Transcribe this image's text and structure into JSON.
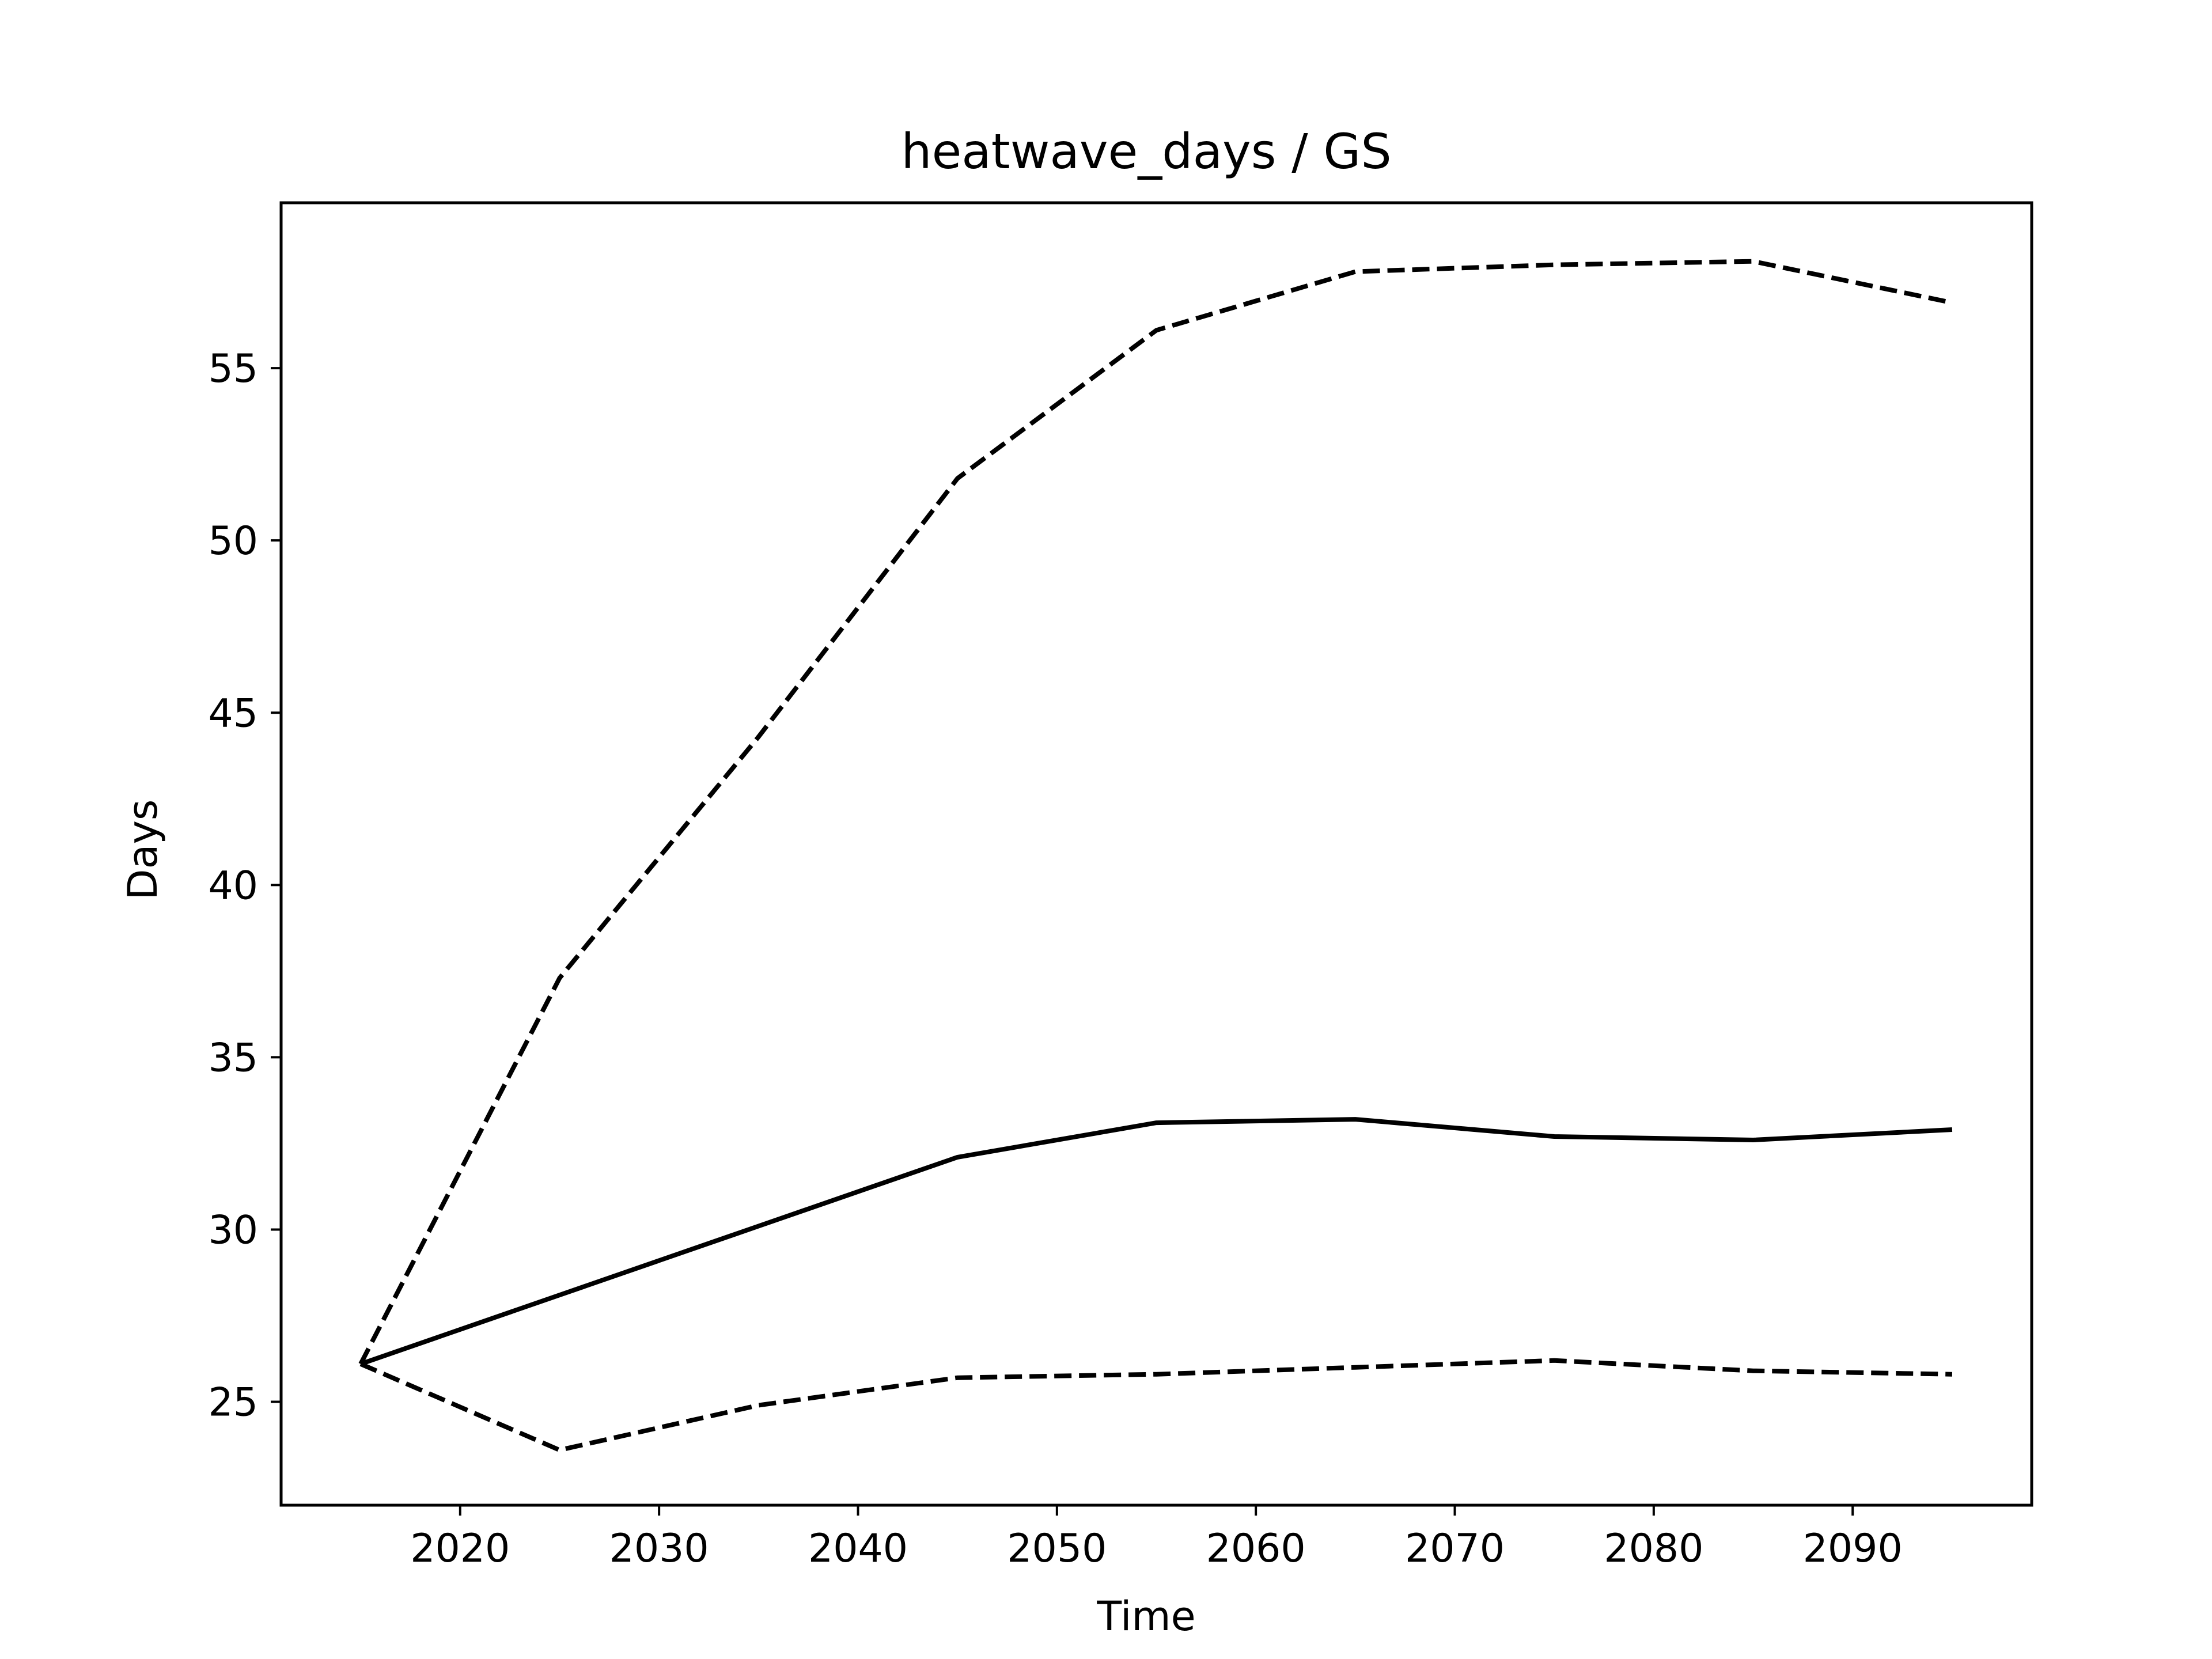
{
  "chart_data": {
    "type": "line",
    "title": "heatwave_days / GS",
    "xlabel": "Time",
    "ylabel": "Days",
    "xlim": [
      2011,
      2099
    ],
    "ylim": [
      22,
      59.8
    ],
    "x_ticks": [
      2020,
      2030,
      2040,
      2050,
      2060,
      2070,
      2080,
      2090
    ],
    "y_ticks": [
      25,
      30,
      35,
      40,
      45,
      50,
      55
    ],
    "grid": false,
    "legend": "none",
    "x": [
      2015,
      2025,
      2035,
      2045,
      2055,
      2065,
      2075,
      2085,
      2095
    ],
    "series": [
      {
        "style": "solid",
        "color": "#000000",
        "values": [
          26.1,
          28.1,
          30.1,
          32.1,
          33.1,
          33.2,
          32.7,
          32.6,
          32.9
        ]
      },
      {
        "style": "dashed",
        "color": "#000000",
        "values": [
          26.1,
          37.3,
          44.3,
          51.8,
          56.1,
          57.8,
          58.0,
          58.1,
          56.9
        ]
      },
      {
        "style": "dashed",
        "color": "#000000",
        "values": [
          26.1,
          23.6,
          24.9,
          25.7,
          25.8,
          26.0,
          26.2,
          25.9,
          25.8
        ]
      }
    ]
  }
}
